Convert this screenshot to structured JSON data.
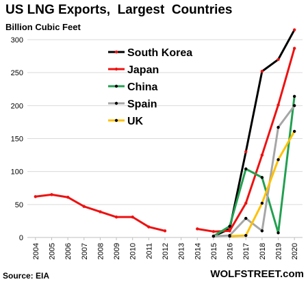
{
  "chart_data": {
    "type": "line",
    "title": "US LNG Exports,  Largest  Countries",
    "subtitle": "Billion Cubic Feet",
    "source": "Source: EIA",
    "watermark": "WOLFSTREET.com",
    "x": [
      "2004",
      "2005",
      "2006",
      "2007",
      "2008",
      "2009",
      "2010",
      "2011",
      "2012",
      "2013",
      "2014",
      "2015",
      "2016",
      "2017",
      "2018",
      "2019",
      "2020"
    ],
    "ylim": [
      0,
      300
    ],
    "yticks": [
      0,
      50,
      100,
      150,
      200,
      250,
      300
    ],
    "grid": true,
    "legend_position": "top-left",
    "series": [
      {
        "name": "South Korea",
        "color": "#000000",
        "values": [
          null,
          null,
          null,
          null,
          null,
          null,
          null,
          null,
          null,
          null,
          null,
          2,
          13,
          130,
          252,
          270,
          315
        ]
      },
      {
        "name": "Japan",
        "color": "#ee1111",
        "values": [
          62,
          65,
          61,
          47,
          39,
          31,
          31,
          16,
          10,
          null,
          13,
          9,
          10,
          52,
          125,
          201,
          287
        ]
      },
      {
        "name": "China",
        "color": "#22a050",
        "values": [
          null,
          null,
          null,
          null,
          null,
          null,
          null,
          null,
          null,
          null,
          null,
          2,
          17,
          104,
          91,
          7,
          214
        ]
      },
      {
        "name": "Spain",
        "color": "#a6a6a6",
        "values": [
          null,
          null,
          null,
          null,
          null,
          null,
          null,
          null,
          null,
          null,
          null,
          2,
          3,
          29,
          10,
          167,
          200
        ]
      },
      {
        "name": "UK",
        "color": "#ffc000",
        "values": [
          null,
          null,
          null,
          null,
          null,
          null,
          null,
          null,
          null,
          null,
          null,
          null,
          2,
          3,
          52,
          118,
          161
        ]
      }
    ]
  }
}
